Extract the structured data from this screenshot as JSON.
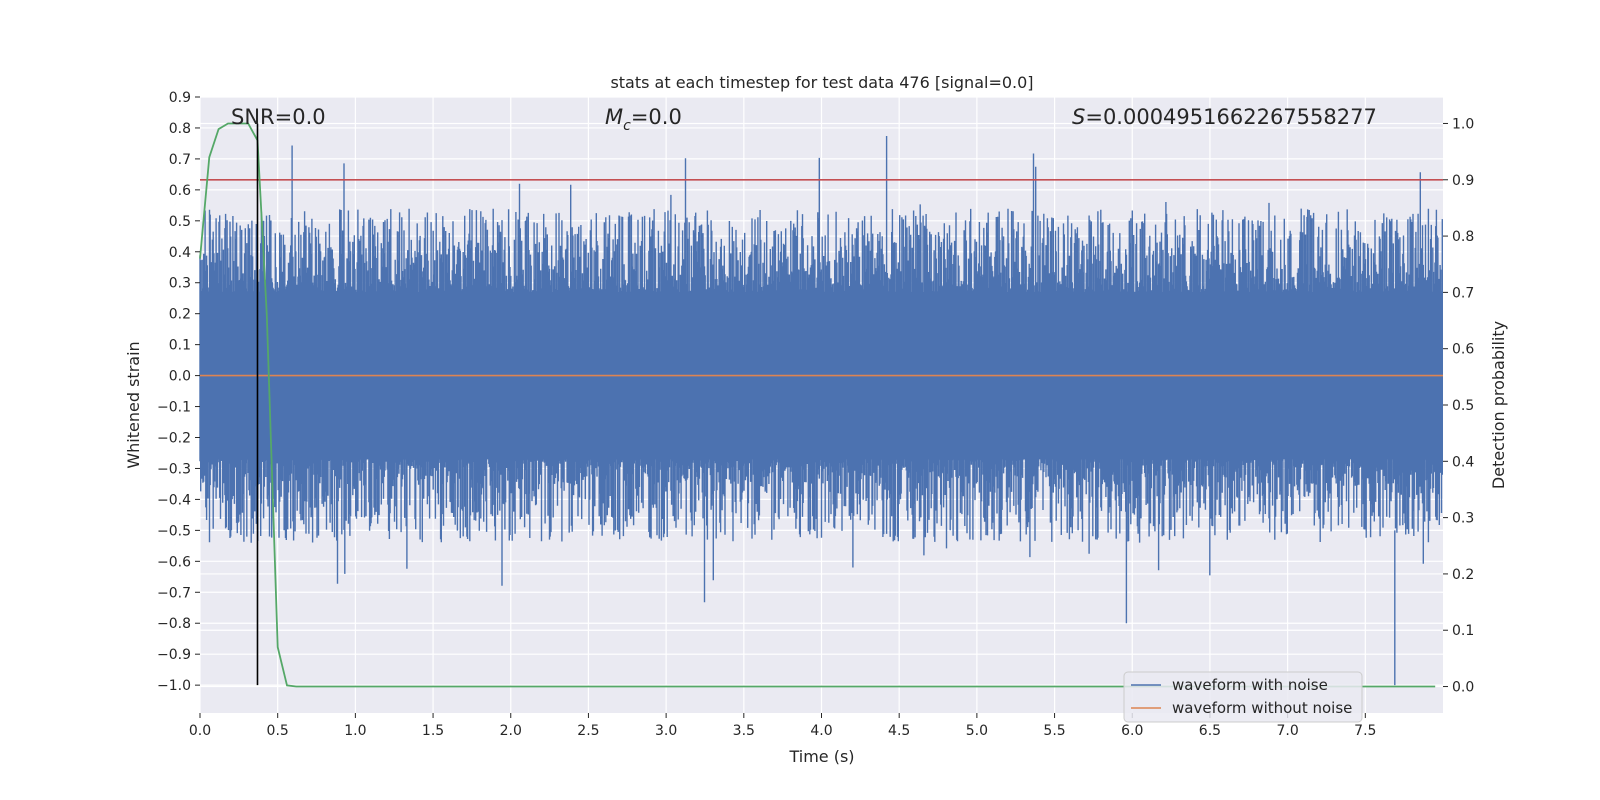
{
  "chart_data": {
    "type": "line",
    "title": "stats at each timestep for test data 476 [signal=0.0]",
    "xlabel": "Time (s)",
    "ylabel": "Whitened strain",
    "ylabel_right": "Detection probability",
    "xlim": [
      0.0,
      8.0
    ],
    "ylim": [
      -1.09,
      0.9
    ],
    "ylim_right": [
      -0.047,
      1.047
    ],
    "xticks": [
      "0.0",
      "0.5",
      "1.0",
      "1.5",
      "2.0",
      "2.5",
      "3.0",
      "3.5",
      "4.0",
      "4.5",
      "5.0",
      "5.5",
      "6.0",
      "6.5",
      "7.0",
      "7.5"
    ],
    "yticks": [
      "0.9",
      "0.8",
      "0.7",
      "0.6",
      "0.5",
      "0.4",
      "0.3",
      "0.2",
      "0.1",
      "0.0",
      "−0.1",
      "−0.2",
      "−0.3",
      "−0.4",
      "−0.5",
      "−0.6",
      "−0.7",
      "−0.8",
      "−0.9",
      "−1.0"
    ],
    "yticks_right": [
      "1.0",
      "0.9",
      "0.8",
      "0.7",
      "0.6",
      "0.5",
      "0.4",
      "0.3",
      "0.2",
      "0.1",
      "0.0"
    ],
    "annotations": {
      "snr": "SNR=0.0",
      "mc_symbol": "M",
      "mc_sub": "c",
      "mc_value": "=0.0",
      "s_symbol": "S",
      "s_value": "=0.0004951662267558277"
    },
    "threshold_right": 0.9,
    "marker_time": 0.37,
    "series": [
      {
        "name": "waveform with noise",
        "color": "#4c72b0",
        "axis": "left",
        "kind": "noise",
        "band": 0.27,
        "typical_peak": 0.45,
        "max_peak": 0.8,
        "min_peak": -1.0
      },
      {
        "name": "waveform without noise",
        "color": "#dd8452",
        "axis": "left",
        "kind": "constant",
        "value": 0.0
      },
      {
        "name": "detection probability",
        "color": "#55a868",
        "axis": "right",
        "kind": "line",
        "x": [
          0.0,
          0.06,
          0.12,
          0.18,
          0.24,
          0.31,
          0.37,
          0.43,
          0.5,
          0.56,
          0.62,
          1.0,
          2.0,
          3.0,
          4.0,
          5.0,
          6.0,
          7.0,
          7.95
        ],
        "y": [
          0.76,
          0.94,
          0.99,
          1.0,
          1.0,
          1.0,
          0.97,
          0.66,
          0.07,
          0.002,
          0.0,
          0.0,
          0.0,
          0.0,
          0.0,
          0.0,
          0.0,
          0.0,
          0.0
        ]
      }
    ],
    "legend": [
      "waveform with noise",
      "waveform without noise"
    ],
    "legend_position": "lower-right"
  }
}
